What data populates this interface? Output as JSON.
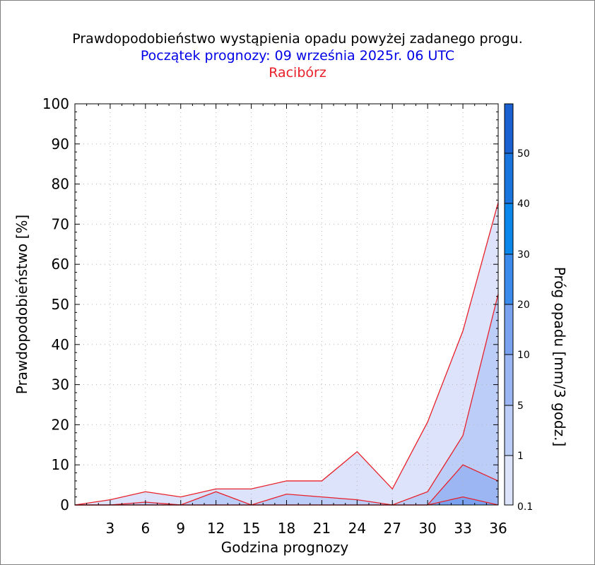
{
  "header": {
    "title": "Prawdopodobieństwo wystąpienia opadu powyżej zadanego progu.",
    "subtitle": "Początek prognozy: 09 września 2025r. 06 UTC",
    "location": "Racibórz"
  },
  "chart_data": {
    "type": "area",
    "title": "Prawdopodobieństwo wystąpienia opadu powyżej zadanego progu.",
    "subtitle": "Początek prognozy: 09 września 2025r. 06 UTC",
    "location": "Racibórz",
    "xlabel": "Godzina prognozy",
    "ylabel": "Prawdopodobieństwo [%]",
    "colorbar_label": "Próg opadu [mm/3 godz.]",
    "xlim": [
      0,
      36
    ],
    "ylim": [
      0,
      100
    ],
    "xticks": [
      3,
      6,
      9,
      12,
      15,
      18,
      21,
      24,
      27,
      30,
      33,
      36
    ],
    "yticks": [
      0,
      10,
      20,
      30,
      40,
      50,
      60,
      70,
      80,
      90,
      100
    ],
    "grid": true,
    "x": [
      0,
      3,
      6,
      9,
      12,
      15,
      18,
      21,
      24,
      27,
      30,
      33,
      36
    ],
    "series": [
      {
        "name": "0.1",
        "color": "#dde3fb",
        "values": [
          0,
          1.3,
          3.3,
          2.0,
          4.0,
          4.0,
          6.0,
          6.0,
          13.3,
          4.0,
          20.7,
          43.4,
          75.4
        ]
      },
      {
        "name": "1",
        "color": "#bccdf8",
        "values": [
          0,
          0,
          0.7,
          0,
          3.3,
          0,
          2.7,
          2.0,
          1.3,
          0,
          3.3,
          17.3,
          52.6
        ]
      },
      {
        "name": "5",
        "color": "#9bb6f3",
        "values": [
          0,
          0,
          0,
          0,
          0,
          0,
          0,
          0,
          0,
          0,
          0,
          10.0,
          6.0
        ]
      },
      {
        "name": "10",
        "color": "#7aa2f0",
        "values": [
          0,
          0,
          0,
          0,
          0,
          0,
          0,
          0,
          0,
          0,
          0,
          2.0,
          0
        ]
      }
    ],
    "line_color": "#e8202a",
    "colorbar": {
      "labels": [
        "0.1",
        "1",
        "5",
        "10",
        "20",
        "30",
        "40",
        "50"
      ],
      "colors": [
        "#dde3fb",
        "#bccdf8",
        "#9bb6f3",
        "#7aa2f0",
        "#3b8bec",
        "#0b86ea",
        "#1a74de",
        "#1a60d0",
        "#1050bd"
      ]
    }
  }
}
